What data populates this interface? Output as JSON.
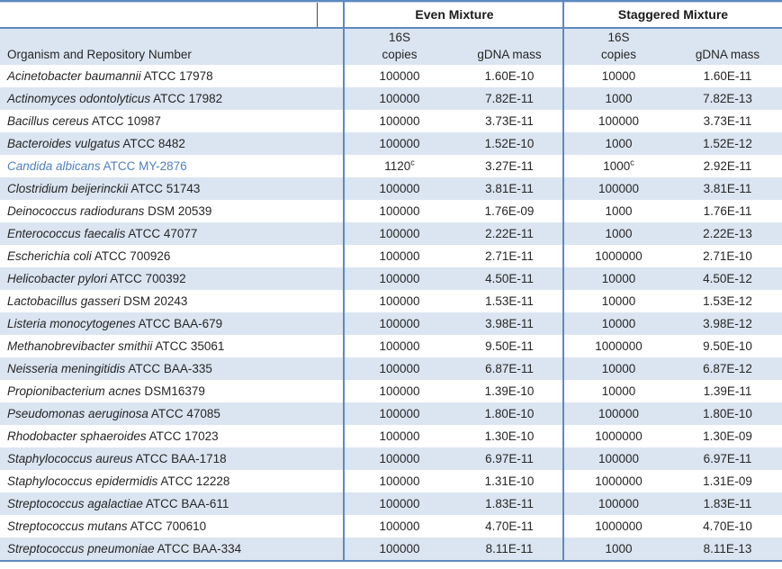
{
  "colors": {
    "border_blue": "#5b8ac2",
    "border_blue_light": "#c7d7eb",
    "row_alt_fill": "#dbe5f1",
    "accent_text": "#4f81bd",
    "text": "#262626"
  },
  "table": {
    "group_headers": {
      "even": "Even Mixture",
      "staggered": "Staggered Mixture"
    },
    "column_headers": {
      "organism": "Organism and Repository Number",
      "copies_top": "16S",
      "copies_bottom": "copies",
      "gdna_mass": "gDNA mass"
    },
    "rows": [
      {
        "species": "Acinetobacter baumannii",
        "repo": "ATCC 17978",
        "even_copies": "100000",
        "even_copies_sup": "",
        "even_mass": "1.60E-10",
        "stag_copies": "10000",
        "stag_copies_sup": "",
        "stag_mass": "1.60E-11",
        "accent": false
      },
      {
        "species": "Actinomyces odontolyticus",
        "repo": "ATCC 17982",
        "even_copies": "100000",
        "even_copies_sup": "",
        "even_mass": "7.82E-11",
        "stag_copies": "1000",
        "stag_copies_sup": "",
        "stag_mass": "7.82E-13",
        "accent": false
      },
      {
        "species": "Bacillus cereus",
        "repo": "ATCC 10987",
        "even_copies": "100000",
        "even_copies_sup": "",
        "even_mass": "3.73E-11",
        "stag_copies": "100000",
        "stag_copies_sup": "",
        "stag_mass": "3.73E-11",
        "accent": false
      },
      {
        "species": "Bacteroides vulgatus",
        "repo": "ATCC 8482",
        "even_copies": "100000",
        "even_copies_sup": "",
        "even_mass": "1.52E-10",
        "stag_copies": "1000",
        "stag_copies_sup": "",
        "stag_mass": "1.52E-12",
        "accent": false
      },
      {
        "species": "Candida albicans",
        "repo": "ATCC MY-2876",
        "even_copies": "1120",
        "even_copies_sup": "c",
        "even_mass": "3.27E-11",
        "stag_copies": "1000",
        "stag_copies_sup": "c",
        "stag_mass": "2.92E-11",
        "accent": true
      },
      {
        "species": "Clostridium beijerinckii",
        "repo": "ATCC 51743",
        "even_copies": "100000",
        "even_copies_sup": "",
        "even_mass": "3.81E-11",
        "stag_copies": "100000",
        "stag_copies_sup": "",
        "stag_mass": "3.81E-11",
        "accent": false
      },
      {
        "species": "Deinococcus radiodurans",
        "repo": "DSM 20539",
        "even_copies": "100000",
        "even_copies_sup": "",
        "even_mass": "1.76E-09",
        "stag_copies": "1000",
        "stag_copies_sup": "",
        "stag_mass": "1.76E-11",
        "accent": false
      },
      {
        "species": "Enterococcus faecalis",
        "repo": "ATCC 47077",
        "even_copies": "100000",
        "even_copies_sup": "",
        "even_mass": "2.22E-11",
        "stag_copies": "1000",
        "stag_copies_sup": "",
        "stag_mass": "2.22E-13",
        "accent": false
      },
      {
        "species": "Escherichia coli",
        "repo": "ATCC 700926",
        "even_copies": "100000",
        "even_copies_sup": "",
        "even_mass": "2.71E-11",
        "stag_copies": "1000000",
        "stag_copies_sup": "",
        "stag_mass": "2.71E-10",
        "accent": false
      },
      {
        "species": "Helicobacter pylori",
        "repo": "ATCC 700392",
        "even_copies": "100000",
        "even_copies_sup": "",
        "even_mass": "4.50E-11",
        "stag_copies": "10000",
        "stag_copies_sup": "",
        "stag_mass": "4.50E-12",
        "accent": false
      },
      {
        "species": "Lactobacillus gasseri",
        "repo": "DSM 20243",
        "even_copies": "100000",
        "even_copies_sup": "",
        "even_mass": "1.53E-11",
        "stag_copies": "10000",
        "stag_copies_sup": "",
        "stag_mass": "1.53E-12",
        "accent": false
      },
      {
        "species": "Listeria monocytogenes",
        "repo": "ATCC BAA-679",
        "even_copies": "100000",
        "even_copies_sup": "",
        "even_mass": "3.98E-11",
        "stag_copies": "10000",
        "stag_copies_sup": "",
        "stag_mass": "3.98E-12",
        "accent": false
      },
      {
        "species": "Methanobrevibacter smithii",
        "repo": "ATCC 35061",
        "even_copies": "100000",
        "even_copies_sup": "",
        "even_mass": "9.50E-11",
        "stag_copies": "1000000",
        "stag_copies_sup": "",
        "stag_mass": "9.50E-10",
        "accent": false
      },
      {
        "species": "Neisseria meningitidis",
        "repo": "ATCC BAA-335",
        "even_copies": "100000",
        "even_copies_sup": "",
        "even_mass": "6.87E-11",
        "stag_copies": "10000",
        "stag_copies_sup": "",
        "stag_mass": "6.87E-12",
        "accent": false
      },
      {
        "species": "Propionibacterium acnes",
        "repo": "DSM16379",
        "even_copies": "100000",
        "even_copies_sup": "",
        "even_mass": "1.39E-10",
        "stag_copies": "10000",
        "stag_copies_sup": "",
        "stag_mass": "1.39E-11",
        "accent": false
      },
      {
        "species": "Pseudomonas aeruginosa",
        "repo": "ATCC 47085",
        "even_copies": "100000",
        "even_copies_sup": "",
        "even_mass": "1.80E-10",
        "stag_copies": "100000",
        "stag_copies_sup": "",
        "stag_mass": "1.80E-10",
        "accent": false
      },
      {
        "species": "Rhodobacter sphaeroides",
        "repo": "ATCC 17023",
        "even_copies": "100000",
        "even_copies_sup": "",
        "even_mass": "1.30E-10",
        "stag_copies": "1000000",
        "stag_copies_sup": "",
        "stag_mass": "1.30E-09",
        "accent": false
      },
      {
        "species": "Staphylococcus aureus",
        "repo": "ATCC BAA-1718",
        "even_copies": "100000",
        "even_copies_sup": "",
        "even_mass": "6.97E-11",
        "stag_copies": "100000",
        "stag_copies_sup": "",
        "stag_mass": "6.97E-11",
        "accent": false
      },
      {
        "species": "Staphylococcus epidermidis",
        "repo": "ATCC 12228",
        "even_copies": "100000",
        "even_copies_sup": "",
        "even_mass": "1.31E-10",
        "stag_copies": "1000000",
        "stag_copies_sup": "",
        "stag_mass": "1.31E-09",
        "accent": false
      },
      {
        "species": "Streptococcus agalactiae",
        "repo": "ATCC BAA-611",
        "even_copies": "100000",
        "even_copies_sup": "",
        "even_mass": "1.83E-11",
        "stag_copies": "100000",
        "stag_copies_sup": "",
        "stag_mass": "1.83E-11",
        "accent": false
      },
      {
        "species": "Streptococcus mutans",
        "repo": "ATCC 700610",
        "even_copies": "100000",
        "even_copies_sup": "",
        "even_mass": "4.70E-11",
        "stag_copies": "1000000",
        "stag_copies_sup": "",
        "stag_mass": "4.70E-10",
        "accent": false
      },
      {
        "species": "Streptococcus pneumoniae",
        "repo": "ATCC BAA-334",
        "even_copies": "100000",
        "even_copies_sup": "",
        "even_mass": "8.11E-11",
        "stag_copies": "1000",
        "stag_copies_sup": "",
        "stag_mass": "8.11E-13",
        "accent": false
      }
    ]
  }
}
